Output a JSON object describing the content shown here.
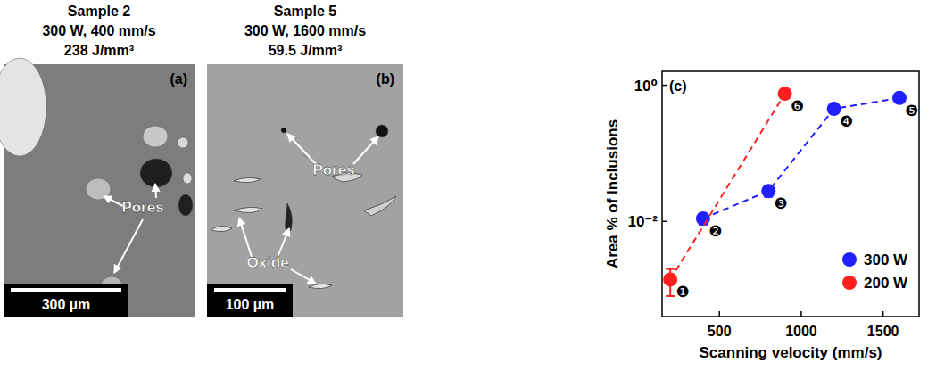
{
  "micrographs": [
    {
      "title": [
        "Sample 2",
        "300 W, 400 mm/s",
        "238 J/mm³"
      ],
      "letter": "(a)",
      "scale_bar": "300 µm",
      "annotations": [
        "Pores"
      ]
    },
    {
      "title": [
        "Sample 5",
        "300 W, 1600 mm/s",
        "59.5 J/mm³"
      ],
      "letter": "(b)",
      "scale_bar": "100 µm",
      "annotations": [
        "Pores",
        "Oxide"
      ]
    }
  ],
  "chart_data": {
    "type": "scatter",
    "letter": "(c)",
    "x_label": "Scanning velocity (mm/s)",
    "y_label": "Area % of Inclusions",
    "log": "y",
    "xlim": [
      150,
      1720
    ],
    "xticks": [
      500,
      1000,
      1500
    ],
    "ylim": [
      0.0004,
      1.6
    ],
    "yticks": [
      {
        "value": 0.01,
        "label": "10⁻²"
      },
      {
        "value": 1,
        "label": "10⁰"
      }
    ],
    "legend": "lower right",
    "marker": "circle",
    "line_style": "dashed",
    "series": [
      {
        "name": "300 W",
        "color": "#1f1fff",
        "x": [
          400,
          800,
          1200,
          1600
        ],
        "values": [
          0.011,
          0.028,
          0.45,
          0.65
        ],
        "errors": [
          0.002,
          0.005,
          0,
          0
        ],
        "point_labels": [
          "❷",
          "❸",
          "❹",
          "❺"
        ]
      },
      {
        "name": "200 W",
        "color": "#ff1f1f",
        "x": [
          200,
          900
        ],
        "values": [
          0.0014,
          0.75
        ],
        "errors": [
          0.0006,
          0
        ],
        "point_labels": [
          "❶",
          "❻"
        ]
      }
    ]
  }
}
